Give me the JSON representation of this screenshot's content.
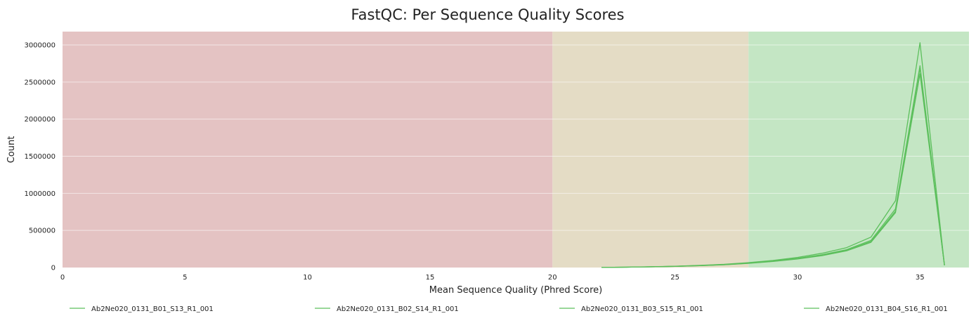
{
  "chart_data": {
    "type": "line",
    "title": "FastQC: Per Sequence Quality Scores",
    "xlabel": "Mean Sequence Quality (Phred Score)",
    "ylabel": "Count",
    "xlim": [
      0,
      37
    ],
    "ylim": [
      0,
      3180000
    ],
    "x_ticks": [
      0,
      5,
      10,
      15,
      20,
      25,
      30,
      35
    ],
    "y_ticks": [
      0,
      500000,
      1000000,
      1500000,
      2000000,
      2500000,
      3000000
    ],
    "grid": true,
    "legend_position": "bottom",
    "bands": [
      {
        "from": 0,
        "to": 20,
        "color": "#e4c3c3"
      },
      {
        "from": 20,
        "to": 28,
        "color": "#e4dcc5"
      },
      {
        "from": 28,
        "to": 37,
        "color": "#c4e6c4"
      }
    ],
    "series": [
      {
        "name": "Ab2Ne020_0131_B01_S13_R1_001",
        "color": "#5cbf5c",
        "x": [
          22,
          23,
          24,
          25,
          26,
          27,
          28,
          29,
          30,
          31,
          32,
          33,
          34,
          35,
          36
        ],
        "y": [
          2000,
          5000,
          9000,
          16000,
          26000,
          38000,
          58000,
          84000,
          118000,
          165000,
          230000,
          350000,
          760000,
          2690000,
          30000
        ]
      },
      {
        "name": "Ab2Ne020_0131_B02_S14_R1_001",
        "color": "#5cbf5c",
        "x": [
          22,
          23,
          24,
          25,
          26,
          27,
          28,
          29,
          30,
          31,
          32,
          33,
          34,
          35,
          36
        ],
        "y": [
          2000,
          5000,
          10000,
          18000,
          29000,
          44000,
          66000,
          96000,
          136000,
          192000,
          268000,
          410000,
          900000,
          3030000,
          35000
        ]
      },
      {
        "name": "Ab2Ne020_0131_B03_S15_R1_001",
        "color": "#5cbf5c",
        "x": [
          22,
          23,
          24,
          25,
          26,
          27,
          28,
          29,
          30,
          31,
          32,
          33,
          34,
          35,
          36
        ],
        "y": [
          2000,
          5000,
          9000,
          15000,
          25000,
          37000,
          56000,
          82000,
          115000,
          160000,
          225000,
          340000,
          740000,
          2610000,
          30000
        ]
      },
      {
        "name": "Ab2Ne020_0131_B04_S16_R1_001",
        "color": "#5cbf5c",
        "x": [
          22,
          23,
          24,
          25,
          26,
          27,
          28,
          29,
          30,
          31,
          32,
          33,
          34,
          35,
          36
        ],
        "y": [
          2000,
          5000,
          9000,
          16000,
          27000,
          40000,
          60000,
          88000,
          124000,
          172000,
          240000,
          365000,
          790000,
          2720000,
          32000
        ]
      }
    ]
  }
}
